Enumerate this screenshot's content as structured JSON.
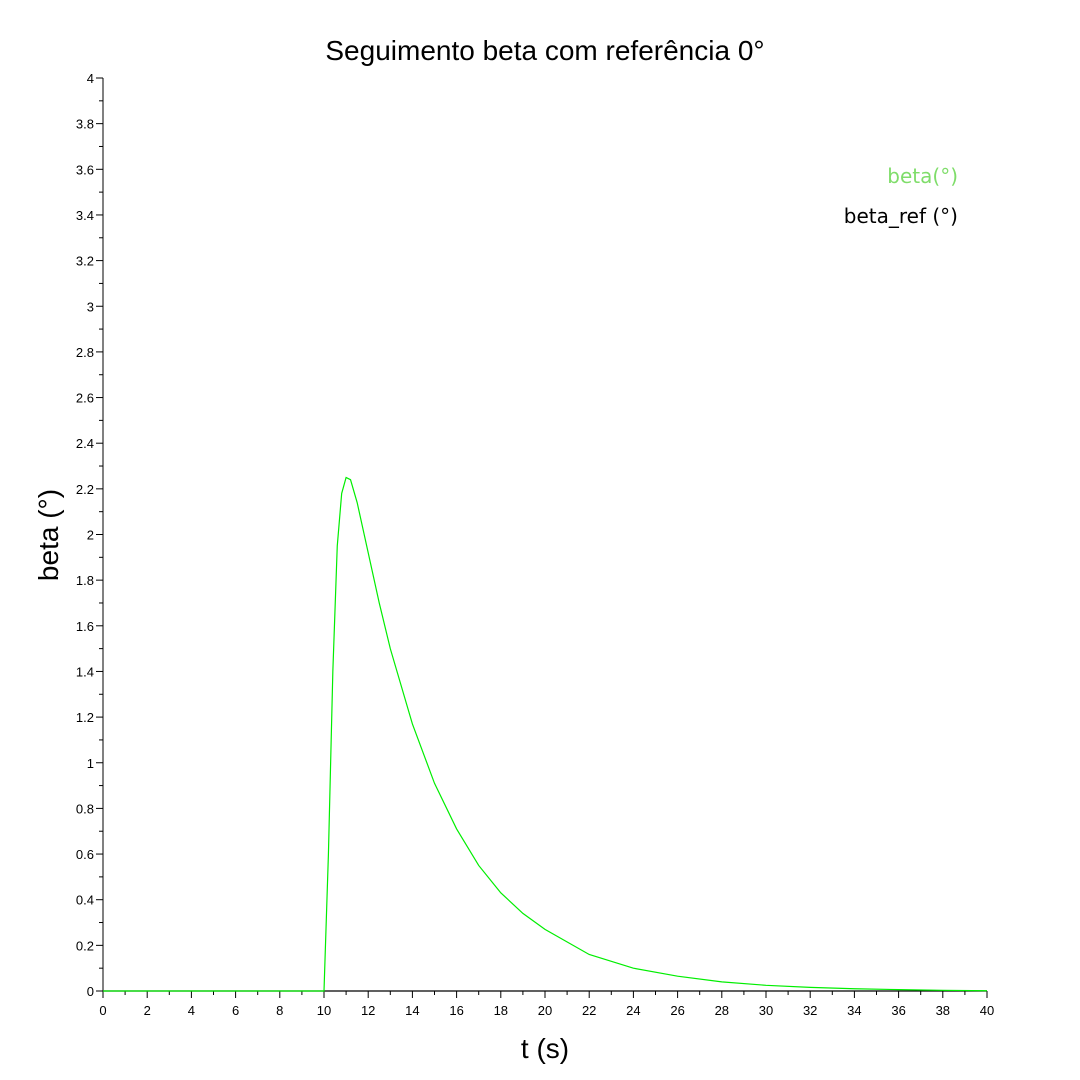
{
  "chart_data": {
    "type": "line",
    "title": "Seguimento beta com referência 0°",
    "xlabel": "t (s)",
    "ylabel": "beta (°)",
    "xlim": [
      0,
      40
    ],
    "ylim": [
      0,
      4
    ],
    "xticks": [
      0,
      2,
      4,
      6,
      8,
      10,
      12,
      14,
      16,
      18,
      20,
      22,
      24,
      26,
      28,
      30,
      32,
      34,
      36,
      38,
      40
    ],
    "yticks": [
      0,
      0.2,
      0.4,
      0.6,
      0.8,
      1,
      1.2,
      1.4,
      1.6,
      1.8,
      2,
      2.2,
      2.4,
      2.6,
      2.8,
      3,
      3.2,
      3.4,
      3.6,
      3.8,
      4
    ],
    "xtick_labels": [
      "0",
      "2",
      "4",
      "6",
      "8",
      "10",
      "12",
      "14",
      "16",
      "18",
      "20",
      "22",
      "24",
      "26",
      "28",
      "30",
      "32",
      "34",
      "36",
      "38",
      "40"
    ],
    "ytick_labels": [
      "0",
      "0.2",
      "0.4",
      "0.6",
      "0.8",
      "1",
      "1.2",
      "1.4",
      "1.6",
      "1.8",
      "2",
      "2.2",
      "2.4",
      "2.6",
      "2.8",
      "3",
      "3.2",
      "3.4",
      "3.6",
      "3.8",
      "4"
    ],
    "grid": false,
    "legend_position": "top-right",
    "series": [
      {
        "name": "beta(°)",
        "color": "#00ee00",
        "legend_color": "#7fdd6a",
        "x": [
          0,
          10,
          10.2,
          10.4,
          10.6,
          10.8,
          11.0,
          11.2,
          11.5,
          12.0,
          12.5,
          13,
          14,
          15,
          16,
          17,
          18,
          19,
          20,
          22,
          24,
          26,
          28,
          30,
          32,
          34,
          36,
          38,
          40
        ],
        "y": [
          0,
          0,
          0.6,
          1.4,
          1.95,
          2.18,
          2.25,
          2.24,
          2.14,
          1.92,
          1.7,
          1.5,
          1.17,
          0.91,
          0.71,
          0.55,
          0.43,
          0.34,
          0.27,
          0.16,
          0.1,
          0.065,
          0.04,
          0.025,
          0.016,
          0.01,
          0.006,
          0.003,
          0.001
        ]
      },
      {
        "name": "beta_ref (°)",
        "color": "#000000",
        "legend_color": "#000000",
        "x": [
          0,
          40
        ],
        "y": [
          0,
          0
        ]
      }
    ]
  }
}
